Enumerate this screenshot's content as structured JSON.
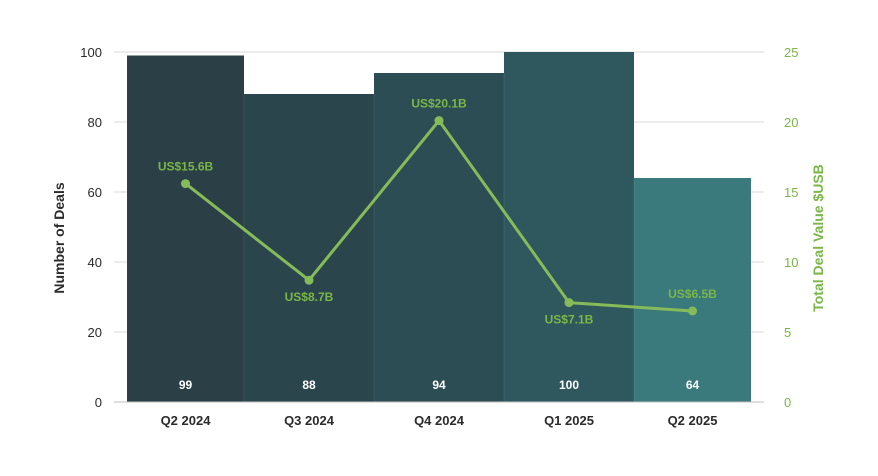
{
  "chart_data": {
    "type": "bar",
    "categories": [
      "Q2 2024",
      "Q3 2024",
      "Q4 2024",
      "Q1 2025",
      "Q2 2025"
    ],
    "series": [
      {
        "name": "Number of Deals",
        "type": "bar",
        "axis": "left",
        "values": [
          99,
          88,
          94,
          100,
          64
        ],
        "labels": [
          "99",
          "88",
          "94",
          "100",
          "64"
        ],
        "colors": [
          "#2a3f46",
          "#2b454d",
          "#2d4d55",
          "#2f575e",
          "#3a7a7d"
        ]
      },
      {
        "name": "Total Deal Value",
        "type": "line",
        "axis": "right",
        "values": [
          15.6,
          8.7,
          20.1,
          7.1,
          6.5
        ],
        "labels": [
          "US$15.6B",
          "US$8.7B",
          "US$20.1B",
          "US$7.1B",
          "US$6.5B"
        ],
        "label_positions": [
          "above",
          "below",
          "above",
          "below",
          "above"
        ],
        "color": "#86bb5a"
      }
    ],
    "ylabel": "Number of Deals",
    "ylabel_right": "Total Deal Value $USB",
    "ylim": [
      0,
      100
    ],
    "ylim_right": [
      0,
      25
    ],
    "yticks": [
      0,
      20,
      40,
      60,
      80,
      100
    ],
    "yticks_right": [
      0,
      5,
      10,
      15,
      20,
      25
    ],
    "grid": true
  }
}
